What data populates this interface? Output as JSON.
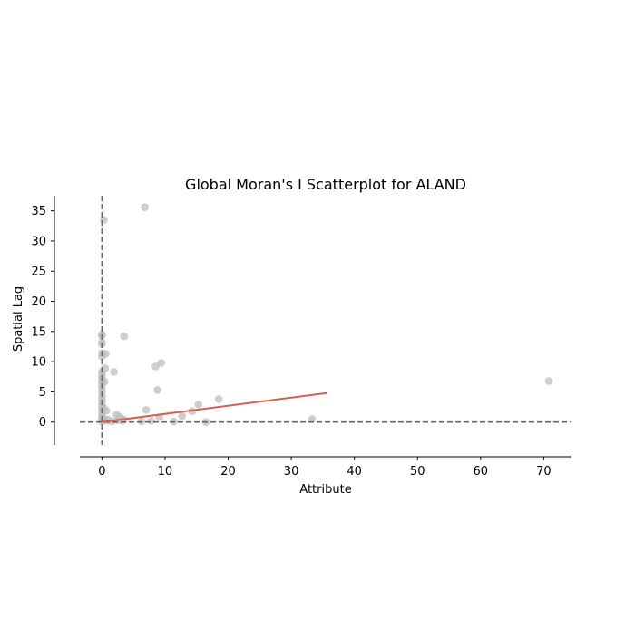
{
  "chart_data": {
    "type": "scatter",
    "title": "Global Moran's I Scatterplot for ALAND",
    "xlabel": "Attribute",
    "ylabel": "Spatial Lag",
    "xlim": [
      -3.5,
      74.4
    ],
    "ylim": [
      -3.8,
      37.5
    ],
    "xticks": [
      0,
      10,
      20,
      30,
      40,
      50,
      60,
      70
    ],
    "yticks": [
      0,
      5,
      10,
      15,
      20,
      25,
      30,
      35
    ],
    "grid": false,
    "reference_lines": {
      "x": 0,
      "y": 0,
      "style": "dashed"
    },
    "point_color": "#bdbdbd",
    "fit_line_color": "#d6604d",
    "reference_line_color": "#666666",
    "series": [
      {
        "values": [
          [
            0,
            14.5
          ],
          [
            0,
            14.3
          ],
          [
            0,
            13.2
          ],
          [
            0,
            12.9
          ],
          [
            0,
            11.4
          ],
          [
            0,
            10.9
          ],
          [
            0,
            8.3
          ],
          [
            0,
            7.8
          ],
          [
            0,
            7.3
          ],
          [
            0,
            6.8
          ],
          [
            0,
            6.2
          ],
          [
            0,
            5.6
          ],
          [
            0,
            5.0
          ],
          [
            0,
            4.3
          ],
          [
            0,
            3.7
          ],
          [
            0,
            3.2
          ],
          [
            0,
            2.6
          ],
          [
            0,
            2.0
          ],
          [
            0,
            1.5
          ],
          [
            0,
            1.0
          ],
          [
            0,
            0.5
          ],
          [
            0,
            0.1
          ],
          [
            0.1,
            0.8
          ],
          [
            0.2,
            2.4
          ],
          [
            0.3,
            33.5
          ],
          [
            0.4,
            6.7
          ],
          [
            0.5,
            8.9
          ],
          [
            0.6,
            11.3
          ],
          [
            0.7,
            1.9
          ],
          [
            0.8,
            0.2
          ],
          [
            1.0,
            0.4
          ],
          [
            1.6,
            0.1
          ],
          [
            1.9,
            8.3
          ],
          [
            2.3,
            1.2
          ],
          [
            2.5,
            0.3
          ],
          [
            2.7,
            0.9
          ],
          [
            3.0,
            0.6
          ],
          [
            3.2,
            0.2
          ],
          [
            3.5,
            0.4
          ],
          [
            3.5,
            14.2
          ],
          [
            6.3,
            0.1
          ],
          [
            6.8,
            35.6
          ],
          [
            7.0,
            2.0
          ],
          [
            7.8,
            0.2
          ],
          [
            8.5,
            9.2
          ],
          [
            8.8,
            5.3
          ],
          [
            9.1,
            0.8
          ],
          [
            9.4,
            9.8
          ],
          [
            11.4,
            0.1
          ],
          [
            12.7,
            1.0
          ],
          [
            14.3,
            1.8
          ],
          [
            15.3,
            2.9
          ],
          [
            16.5,
            0.0
          ],
          [
            18.5,
            3.8
          ],
          [
            33.3,
            0.5
          ],
          [
            70.8,
            6.8
          ]
        ]
      }
    ],
    "fit_line": {
      "x": [
        0,
        35.6
      ],
      "y": [
        0.0,
        4.8
      ]
    }
  }
}
